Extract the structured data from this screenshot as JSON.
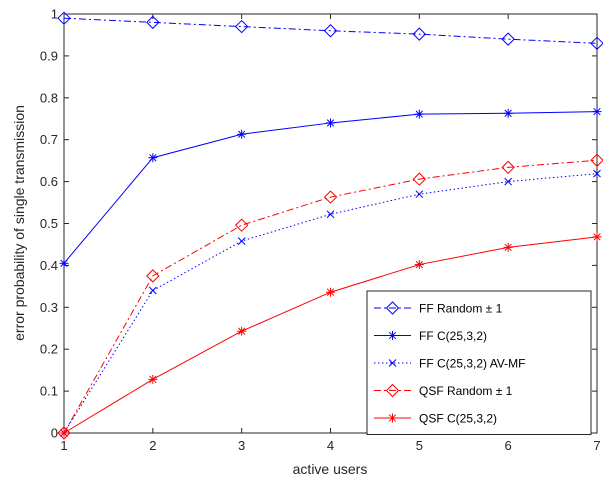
{
  "chart_data": {
    "type": "line",
    "xlabel": "active users",
    "ylabel": "error probability of single transmission",
    "xlim": [
      1,
      7
    ],
    "ylim": [
      0,
      1
    ],
    "xticks": [
      "1",
      "2",
      "3",
      "4",
      "5",
      "6",
      "7"
    ],
    "yticks": [
      "0",
      "0.1",
      "0.2",
      "0.3",
      "0.4",
      "0.5",
      "0.6",
      "0.7",
      "0.8",
      "0.9",
      "1"
    ],
    "grid": false,
    "legend_position": "bottom-right",
    "x": [
      1,
      2,
      3,
      4,
      5,
      6,
      7
    ],
    "series": [
      {
        "name": "FF Random ± 1",
        "color": "#0000ff",
        "linestyle": "dashdot",
        "marker": "diamond",
        "values": [
          0.99,
          0.98,
          0.97,
          0.96,
          0.952,
          0.94,
          0.93
        ]
      },
      {
        "name": "FF C(25,3,2)",
        "color": "#0000ff",
        "linestyle": "solid",
        "marker": "asterisk",
        "values": [
          0.405,
          0.657,
          0.713,
          0.74,
          0.761,
          0.763,
          0.767
        ]
      },
      {
        "name": "FF C(25,3,2) AV-MF",
        "color": "#0000ff",
        "linestyle": "dotted",
        "marker": "x",
        "values": [
          0.0,
          0.34,
          0.458,
          0.522,
          0.57,
          0.6,
          0.619
        ]
      },
      {
        "name": "QSF Random ± 1",
        "color": "#ff0000",
        "linestyle": "dashdot",
        "marker": "diamond",
        "values": [
          0.0,
          0.375,
          0.496,
          0.563,
          0.606,
          0.634,
          0.651
        ]
      },
      {
        "name": "QSF C(25,3,2)",
        "color": "#ff0000",
        "linestyle": "solid",
        "marker": "asterisk",
        "values": [
          0.0,
          0.128,
          0.243,
          0.336,
          0.402,
          0.443,
          0.468
        ]
      }
    ]
  }
}
